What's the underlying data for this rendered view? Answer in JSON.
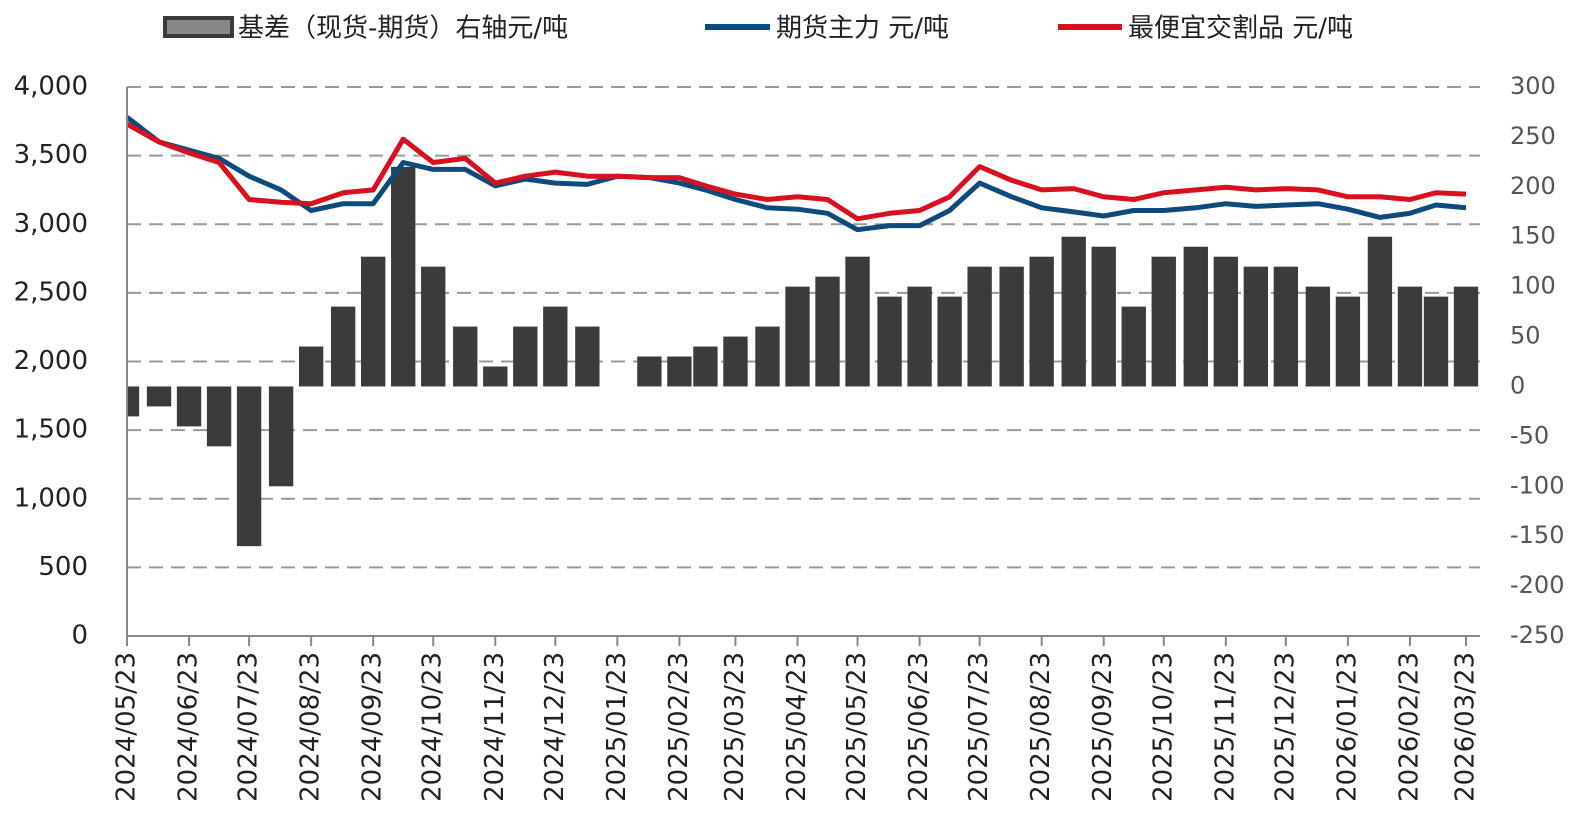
{
  "chart_data": {
    "type": "bar-line",
    "x": [
      "2024/05/23",
      "2024/06/08",
      "2024/06/23",
      "2024/07/08",
      "2024/07/23",
      "2024/08/08",
      "2024/08/23",
      "2024/09/08",
      "2024/09/23",
      "2024/10/08",
      "2024/10/23",
      "2024/11/08",
      "2024/11/23",
      "2024/12/08",
      "2024/12/23",
      "2025/01/08",
      "2025/01/23",
      "2025/02/08",
      "2025/02/23",
      "2025/03/08",
      "2025/03/23",
      "2025/04/08",
      "2025/04/23",
      "2025/05/08",
      "2025/05/23",
      "2025/06/08",
      "2025/06/23",
      "2025/07/08",
      "2025/07/23",
      "2025/08/08",
      "2025/08/23",
      "2025/09/08",
      "2025/09/23",
      "2025/10/08",
      "2025/10/23",
      "2025/11/08",
      "2025/11/23",
      "2025/12/08",
      "2025/12/23",
      "2026/01/08",
      "2026/01/23",
      "2026/02/08",
      "2026/02/23",
      "2026/03/08",
      "2026/03/23"
    ],
    "series": [
      {
        "name": "基差（现货-期货）右轴元/吨",
        "type": "bar",
        "axis": "y2",
        "color": "#3d3a3a",
        "values": [
          -30,
          -20,
          -40,
          -60,
          -160,
          -100,
          40,
          80,
          130,
          220,
          120,
          60,
          20,
          60,
          80,
          60,
          0,
          30,
          30,
          40,
          50,
          60,
          100,
          110,
          130,
          90,
          100,
          90,
          120,
          120,
          130,
          150,
          140,
          80,
          130,
          140,
          130,
          120,
          120,
          100,
          90,
          150,
          100,
          90,
          100
        ]
      },
      {
        "name": "期货主力 元/吨",
        "type": "line",
        "color": "#0d4a7e",
        "values": [
          3780,
          3600,
          3540,
          3480,
          3350,
          3250,
          3100,
          3150,
          3150,
          3450,
          3400,
          3400,
          3280,
          3330,
          3300,
          3290,
          3350,
          3340,
          3300,
          3250,
          3180,
          3120,
          3110,
          3080,
          2960,
          2990,
          2990,
          3100,
          3300,
          3200,
          3120,
          3090,
          3060,
          3100,
          3100,
          3120,
          3150,
          3130,
          3140,
          3150,
          3110,
          3050,
          3080,
          3140,
          3120
        ]
      },
      {
        "name": "最便宜交割品 元/吨",
        "type": "line",
        "color": "#d9101e",
        "values": [
          3730,
          3600,
          3520,
          3450,
          3180,
          3160,
          3150,
          3230,
          3250,
          3620,
          3450,
          3480,
          3300,
          3350,
          3380,
          3350,
          3350,
          3340,
          3340,
          3280,
          3220,
          3180,
          3200,
          3180,
          3040,
          3080,
          3100,
          3200,
          3420,
          3320,
          3250,
          3260,
          3200,
          3180,
          3230,
          3250,
          3270,
          3250,
          3260,
          3250,
          3200,
          3200,
          3180,
          3230,
          3220
        ]
      }
    ],
    "xlim": [
      "2024/05/23",
      "2026/03/30"
    ],
    "xticks": [
      "2024/05/23",
      "2024/06/23",
      "2024/07/23",
      "2024/08/23",
      "2024/09/23",
      "2024/10/23",
      "2024/11/23",
      "2024/12/23",
      "2025/01/23",
      "2025/02/23",
      "2025/03/23",
      "2025/04/23",
      "2025/05/23",
      "2025/06/23",
      "2025/07/23",
      "2025/08/23",
      "2025/09/23",
      "2025/10/23",
      "2025/11/23",
      "2025/12/23",
      "2026/01/23",
      "2026/02/23",
      "2026/03/23"
    ],
    "ylim": [
      0,
      4000
    ],
    "yticks": [
      0,
      500,
      {
        "value": 1000,
        "label": "1,000"
      },
      {
        "value": 1500,
        "label": "1,500"
      },
      {
        "value": 2000,
        "label": "2,000"
      },
      {
        "value": 2500,
        "label": "2,500"
      },
      {
        "value": 3000,
        "label": "3,000"
      },
      {
        "value": 3500,
        "label": "3,500"
      },
      {
        "value": 4000,
        "label": "4,000"
      }
    ],
    "y2lim": [
      -250,
      300
    ],
    "y2ticks": [
      -250,
      -200,
      -150,
      -100,
      -50,
      0,
      50,
      100,
      150,
      200,
      250,
      300
    ],
    "grid": true,
    "legend": "top"
  }
}
